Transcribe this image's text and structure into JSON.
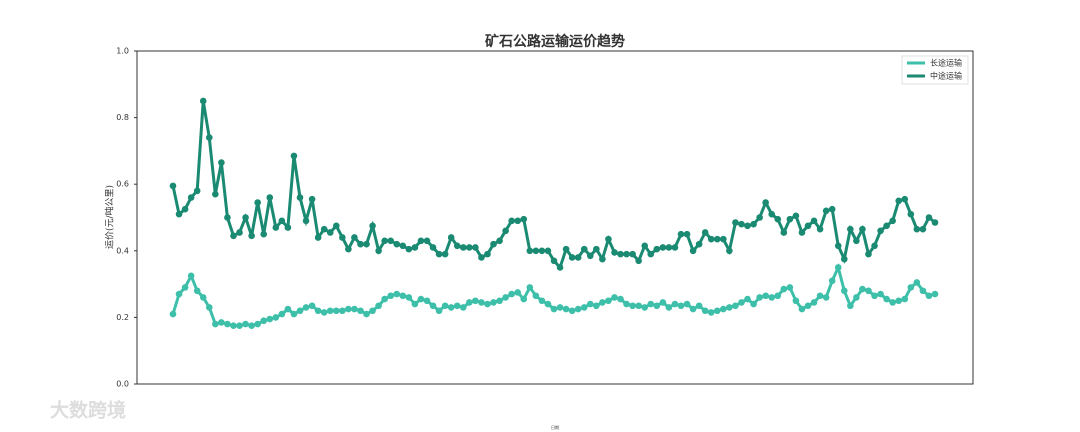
{
  "chart_data": {
    "type": "line",
    "title": "矿石公路运输运价趋势",
    "y_label": "运价(元/吨公里)",
    "x_label": "日期",
    "watermark": "大数跨境",
    "legend": "upper right",
    "categories": [
      null,
      null,
      null,
      null,
      null,
      null,
      null,
      null,
      null,
      null,
      null,
      null,
      null,
      null,
      null,
      null,
      null,
      null,
      null,
      null,
      null,
      null,
      null,
      null,
      null,
      null,
      null,
      null,
      null,
      null,
      null,
      null,
      null,
      null,
      null,
      null,
      null,
      null,
      null,
      null,
      null,
      null,
      null,
      null,
      null,
      null,
      null,
      null,
      null,
      null,
      null,
      null,
      null,
      null,
      null,
      null,
      null,
      null,
      null,
      null,
      null,
      null,
      null,
      null,
      null,
      null,
      null,
      null,
      null,
      null,
      null,
      null,
      null,
      null,
      null,
      null,
      null,
      null,
      null,
      null,
      null,
      null,
      null,
      null,
      null,
      null,
      null,
      null,
      null,
      null,
      null,
      null,
      null,
      null,
      null,
      null,
      null,
      null,
      null,
      null,
      null,
      null,
      null,
      null,
      null,
      null,
      null,
      null,
      null,
      null,
      null,
      null,
      null,
      null,
      null,
      null,
      null,
      null,
      null,
      null,
      null,
      null,
      null,
      null,
      null,
      null,
      null
    ],
    "series": [
      {
        "name": "长途运输",
        "color": "#3dbfa9",
        "values": [
          0.21,
          0.27,
          0.29,
          0.325,
          0.28,
          0.26,
          0.23,
          0.18,
          0.185,
          0.18,
          0.175,
          0.175,
          0.18,
          0.175,
          0.18,
          0.19,
          0.195,
          0.2,
          0.21,
          0.225,
          0.21,
          0.22,
          0.23,
          0.235,
          0.22,
          0.215,
          0.22,
          0.22,
          0.22,
          0.225,
          0.225,
          0.22,
          0.21,
          0.22,
          0.235,
          0.255,
          0.265,
          0.27,
          0.265,
          0.26,
          0.24,
          0.255,
          0.25,
          0.235,
          0.22,
          0.235,
          0.23,
          0.235,
          0.23,
          0.245,
          0.25,
          0.245,
          0.24,
          0.245,
          0.25,
          0.26,
          0.27,
          0.275,
          0.255,
          0.29,
          0.265,
          0.25,
          0.24,
          0.225,
          0.23,
          0.225,
          0.22,
          0.225,
          0.23,
          0.24,
          0.235,
          0.245,
          0.25,
          0.26,
          0.255,
          0.24,
          0.235,
          0.235,
          0.23,
          0.24,
          0.235,
          0.245,
          0.23,
          0.24,
          0.235,
          0.24,
          0.225,
          0.235,
          0.22,
          0.215,
          0.22,
          0.225,
          0.23,
          0.235,
          0.245,
          0.255,
          0.24,
          0.26,
          0.265,
          0.26,
          0.265,
          0.285,
          0.29,
          0.25,
          0.225,
          0.235,
          0.245,
          0.265,
          0.26,
          0.31,
          0.35,
          0.28,
          0.235,
          0.26,
          0.285,
          0.28,
          0.265,
          0.27,
          0.255,
          0.245,
          0.25,
          0.255,
          0.29,
          0.305,
          0.28,
          0.265,
          0.27
        ]
      },
      {
        "name": "中途运输",
        "color": "#1a8a72",
        "values": [
          0.595,
          0.51,
          0.525,
          0.56,
          0.58,
          0.85,
          0.74,
          0.57,
          0.665,
          0.5,
          0.445,
          0.455,
          0.5,
          0.445,
          0.545,
          0.45,
          0.56,
          0.47,
          0.49,
          0.47,
          0.685,
          0.56,
          0.49,
          0.555,
          0.44,
          0.465,
          0.455,
          0.475,
          0.44,
          0.405,
          0.44,
          0.42,
          0.42,
          0.475,
          0.4,
          0.43,
          0.43,
          0.42,
          0.415,
          0.405,
          0.41,
          0.43,
          0.43,
          0.41,
          0.39,
          0.39,
          0.44,
          0.415,
          0.41,
          0.41,
          0.41,
          0.38,
          0.39,
          0.42,
          0.43,
          0.46,
          0.49,
          0.49,
          0.495,
          0.4,
          0.4,
          0.4,
          0.4,
          0.37,
          0.35,
          0.405,
          0.38,
          0.38,
          0.405,
          0.385,
          0.405,
          0.375,
          0.435,
          0.395,
          0.39,
          0.39,
          0.39,
          0.37,
          0.415,
          0.39,
          0.405,
          0.41,
          0.41,
          0.41,
          0.45,
          0.45,
          0.4,
          0.42,
          0.455,
          0.435,
          0.435,
          0.435,
          0.4,
          0.485,
          0.48,
          0.475,
          0.48,
          0.5,
          0.545,
          0.51,
          0.495,
          0.455,
          0.495,
          0.505,
          0.455,
          0.475,
          0.49,
          0.465,
          0.52,
          0.525,
          0.415,
          0.375,
          0.465,
          0.43,
          0.465,
          0.39,
          0.415,
          0.46,
          0.475,
          0.49,
          0.55,
          0.555,
          0.51,
          0.465,
          0.465,
          0.5,
          0.485
        ]
      }
    ],
    "ylim": [
      0,
      1
    ],
    "yticks": [
      {
        "value": 0,
        "label": "0.0"
      },
      0.2,
      0.4,
      0.6,
      0.8,
      {
        "value": 1,
        "label": "1.0"
      }
    ],
    "grid": false
  }
}
